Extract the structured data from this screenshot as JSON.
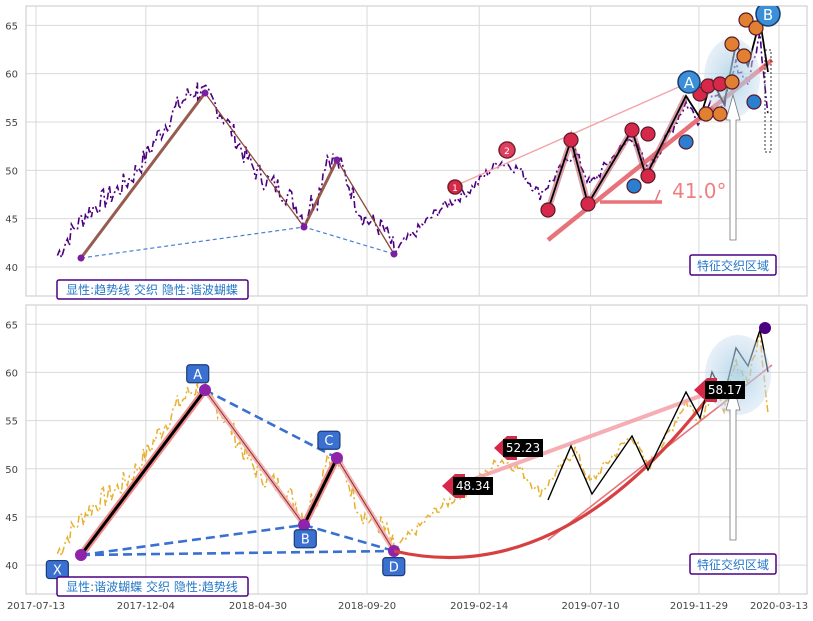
{
  "chart_data": [
    {
      "type": "line",
      "panel": "top",
      "ylim": [
        37,
        67
      ],
      "yticks": [
        "40",
        "45",
        "50",
        "55",
        "60",
        "65"
      ],
      "grid": true,
      "series": [
        {
          "role": "price",
          "color": "#4b0082"
        }
      ],
      "zigzag_pivots": [
        {
          "x": "2017-08-10",
          "y": 41.2
        },
        {
          "x": "2018-02-10",
          "y": 58.2
        },
        {
          "x": "2018-07-01",
          "y": 44.4
        },
        {
          "x": "2018-08-01",
          "y": 51.3
        },
        {
          "x": "2018-10-25",
          "y": 41.5
        }
      ],
      "trendline_angle_label": "41.0°",
      "circle_labels": [
        "1",
        "2",
        "A",
        "B"
      ],
      "annotation_label": "特征交织区域",
      "footer_label": "显性:趋势线 交织 隐性:谐波蝴蝶"
    },
    {
      "type": "line",
      "panel": "bottom",
      "ylim": [
        37,
        67
      ],
      "yticks": [
        "40",
        "45",
        "50",
        "55",
        "60",
        "65"
      ],
      "xticks": [
        "2017-07-13",
        "2017-12-04",
        "2018-04-30",
        "2018-09-20",
        "2019-02-14",
        "2019-07-10",
        "2019-11-29",
        "2020-03-13"
      ],
      "grid": true,
      "series": [
        {
          "role": "price",
          "color": "#e8b030"
        }
      ],
      "harmonic_points": [
        {
          "label": "X",
          "x": "2017-08-10",
          "y": 41.2
        },
        {
          "label": "A",
          "x": "2018-02-10",
          "y": 58.2
        },
        {
          "label": "B",
          "x": "2018-07-01",
          "y": 44.4
        },
        {
          "label": "C",
          "x": "2018-08-01",
          "y": 51.3
        },
        {
          "label": "D",
          "x": "2018-10-25",
          "y": 41.5
        }
      ],
      "value_tags": [
        "48.34",
        "52.23",
        "58.17"
      ],
      "annotation_label": "特征交织区域",
      "footer_label": "显性:谐波蝴蝶 交织 隐性:趋势线"
    }
  ]
}
